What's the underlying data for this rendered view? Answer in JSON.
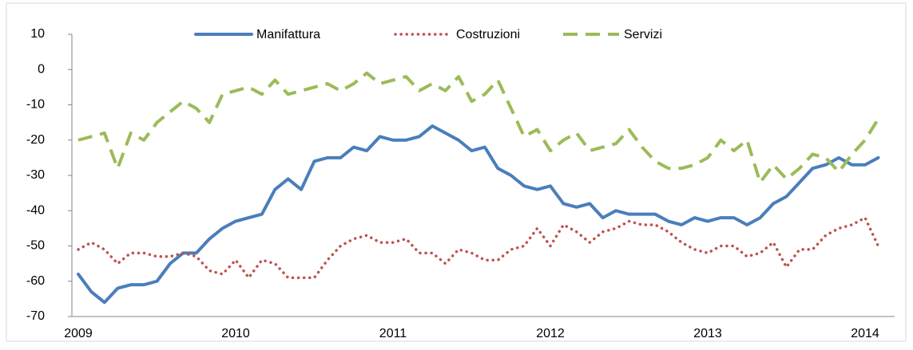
{
  "chart_data": {
    "type": "line",
    "categories": [
      "2009",
      null,
      null,
      null,
      null,
      null,
      null,
      null,
      null,
      null,
      null,
      null,
      "2010",
      null,
      null,
      null,
      null,
      null,
      null,
      null,
      null,
      null,
      null,
      null,
      "2011",
      null,
      null,
      null,
      null,
      null,
      null,
      null,
      null,
      null,
      null,
      null,
      "2012",
      null,
      null,
      null,
      null,
      null,
      null,
      null,
      null,
      null,
      null,
      null,
      "2013",
      null,
      null,
      null,
      null,
      null,
      null,
      null,
      null,
      null,
      null,
      null,
      "2014",
      null
    ],
    "series": [
      {
        "name": "Manifattura",
        "color": "#4a7ebb",
        "style": "solid",
        "values": [
          -58,
          -63,
          -66,
          -62,
          -61,
          -61,
          -60,
          -55,
          -52,
          -52,
          -48,
          -45,
          -43,
          -42,
          -41,
          -34,
          -31,
          -34,
          -26,
          -25,
          -25,
          -22,
          -23,
          -19,
          -20,
          -20,
          -19,
          -16,
          -18,
          -20,
          -23,
          -22,
          -28,
          -30,
          -33,
          -34,
          -33,
          -38,
          -39,
          -38,
          -42,
          -40,
          -41,
          -41,
          -41,
          -43,
          -44,
          -42,
          -43,
          -42,
          -42,
          -44,
          -42,
          -38,
          -36,
          -32,
          -28,
          -27,
          -25,
          -27,
          -27,
          -25
        ]
      },
      {
        "name": "Costruzioni",
        "color": "#c0504d",
        "style": "dotted",
        "values": [
          -51,
          -49,
          -51,
          -55,
          -52,
          -52,
          -53,
          -53,
          -52,
          -53,
          -57,
          -58,
          -54,
          -59,
          -54,
          -55,
          -59,
          -59,
          -59,
          -54,
          -50,
          -48,
          -47,
          -49,
          -49,
          -48,
          -52,
          -52,
          -55,
          -51,
          -52,
          -54,
          -54,
          -51,
          -50,
          -45,
          -50,
          -44,
          -46,
          -49,
          -46,
          -45,
          -43,
          -44,
          -44,
          -46,
          -49,
          -51,
          -52,
          -50,
          -50,
          -53,
          -52,
          -49,
          -56,
          -51,
          -51,
          -47,
          -45,
          -44,
          -42,
          -50
        ]
      },
      {
        "name": "Servizi",
        "color": "#9bbb59",
        "style": "dashed",
        "values": [
          -20,
          -19,
          -18,
          -28,
          -18,
          -20,
          -15,
          -12,
          -9,
          -11,
          -15,
          -7,
          -6,
          -5,
          -7,
          -3,
          -7,
          -6,
          -5,
          -4,
          -6,
          -4,
          -1,
          -4,
          -3,
          -2,
          -6,
          -4,
          -6,
          -2,
          -9,
          -7,
          -3,
          -11,
          -19,
          -17,
          -23,
          -20,
          -18,
          -23,
          -22,
          -21,
          -17,
          -22,
          -26,
          -28,
          -28,
          -27,
          -25,
          -20,
          -23,
          -20,
          -32,
          -27,
          -31,
          -28,
          -24,
          -25,
          -29,
          -24,
          -20,
          -14
        ]
      }
    ],
    "ylim": [
      -70,
      10
    ],
    "yticks": [
      10,
      0,
      -10,
      -20,
      -30,
      -40,
      -50,
      -60,
      -70
    ],
    "legend": "top"
  }
}
